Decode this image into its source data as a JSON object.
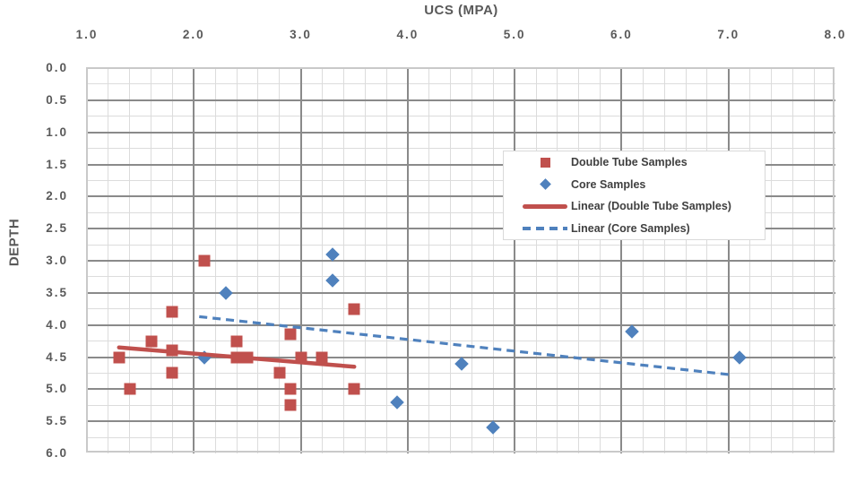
{
  "chart_data": {
    "type": "scatter",
    "title": "UCS (MPA)",
    "xlabel": "UCS (MPA)",
    "ylabel": "DEPTH",
    "x_axis": {
      "min": 1.0,
      "max": 8.0,
      "major_step": 1.0,
      "minor_step": 0.2,
      "labels_position": "top",
      "tick_labels": [
        "1.0",
        "2.0",
        "3.0",
        "4.0",
        "5.0",
        "6.0",
        "7.0",
        "8.0"
      ]
    },
    "y_axis": {
      "min": 0.0,
      "max": 6.0,
      "major_step": 0.5,
      "minor_step": 0.25,
      "inverted": true,
      "tick_labels": [
        "0.0",
        "0.5",
        "1.0",
        "1.5",
        "2.0",
        "2.5",
        "3.0",
        "3.5",
        "4.0",
        "4.5",
        "5.0",
        "5.5",
        "6.0"
      ]
    },
    "grid": {
      "minor_color": "#DCDCDC",
      "major_color": "#8A8A8A",
      "border_color": "#C9C9C9",
      "grid_on": true
    },
    "colors": {
      "double_tube": "#C0504D",
      "core": "#4F81BD",
      "tick_text": "#595959",
      "legend_text": "#404040"
    },
    "legend": {
      "position": "right-center",
      "entries": [
        "Double Tube Samples",
        "Core Samples",
        "Linear (Double Tube Samples)",
        "Linear (Core Samples)"
      ]
    },
    "series": [
      {
        "name": "Double Tube Samples",
        "kind": "scatter",
        "marker": "square",
        "color": "#C0504D",
        "points": [
          [
            1.3,
            4.5
          ],
          [
            1.4,
            5.0
          ],
          [
            1.6,
            4.25
          ],
          [
            1.8,
            3.8
          ],
          [
            1.8,
            4.4
          ],
          [
            1.8,
            4.75
          ],
          [
            2.1,
            3.0
          ],
          [
            2.4,
            4.25
          ],
          [
            2.4,
            4.5
          ],
          [
            2.5,
            4.5
          ],
          [
            2.8,
            4.75
          ],
          [
            2.9,
            4.15
          ],
          [
            2.9,
            5.0
          ],
          [
            2.9,
            5.25
          ],
          [
            3.0,
            4.5
          ],
          [
            3.2,
            4.5
          ],
          [
            3.5,
            3.75
          ],
          [
            3.5,
            5.0
          ]
        ]
      },
      {
        "name": "Core Samples",
        "kind": "scatter",
        "marker": "diamond",
        "color": "#4F81BD",
        "points": [
          [
            2.1,
            4.5
          ],
          [
            2.3,
            3.5
          ],
          [
            3.3,
            2.9
          ],
          [
            3.3,
            3.3
          ],
          [
            3.9,
            5.2
          ],
          [
            4.5,
            4.6
          ],
          [
            4.8,
            5.6
          ],
          [
            6.1,
            4.1
          ],
          [
            7.1,
            4.5
          ]
        ]
      },
      {
        "name": "Linear (Double Tube Samples)",
        "kind": "trendline",
        "line_style": "solid",
        "color": "#C0504D",
        "from": [
          1.3,
          4.35
        ],
        "to": [
          3.5,
          4.65
        ]
      },
      {
        "name": "Linear (Core Samples)",
        "kind": "trendline",
        "line_style": "dashed",
        "color": "#4F81BD",
        "from": [
          2.05,
          3.87
        ],
        "to": [
          7.05,
          4.78
        ]
      }
    ]
  }
}
